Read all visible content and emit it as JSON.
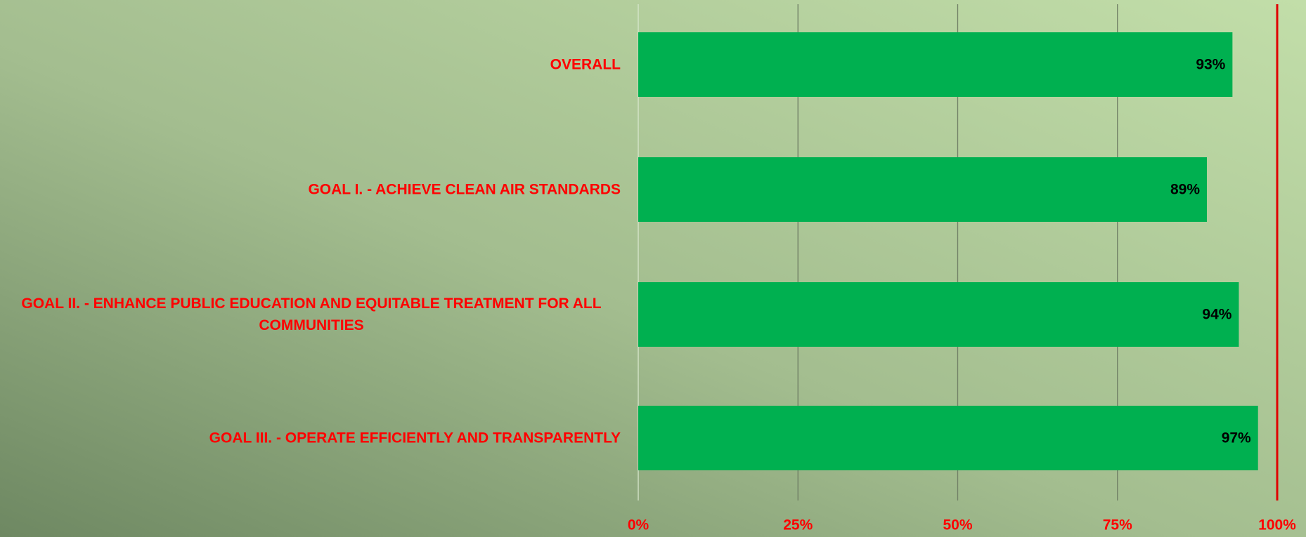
{
  "chart_data": {
    "type": "bar",
    "orientation": "horizontal",
    "categories": [
      "OVERALL",
      "GOAL I. - ACHIEVE CLEAN AIR STANDARDS",
      "GOAL II. - ENHANCE PUBLIC EDUCATION AND EQUITABLE TREATMENT FOR ALL COMMUNITIES",
      "GOAL III. - OPERATE EFFICIENTLY AND TRANSPARENTLY"
    ],
    "values": [
      93,
      89,
      94,
      97
    ],
    "value_labels": [
      "93%",
      "89%",
      "94%",
      "97%"
    ],
    "color": "#00b050",
    "xlim": [
      0,
      100
    ],
    "xticks": [
      {
        "value": 0,
        "label": "0%"
      },
      {
        "value": 25,
        "label": "25%"
      },
      {
        "value": 50,
        "label": "50%"
      },
      {
        "value": 75,
        "label": "75%"
      },
      {
        "value": 100,
        "label": "100%"
      }
    ],
    "grid": true
  }
}
